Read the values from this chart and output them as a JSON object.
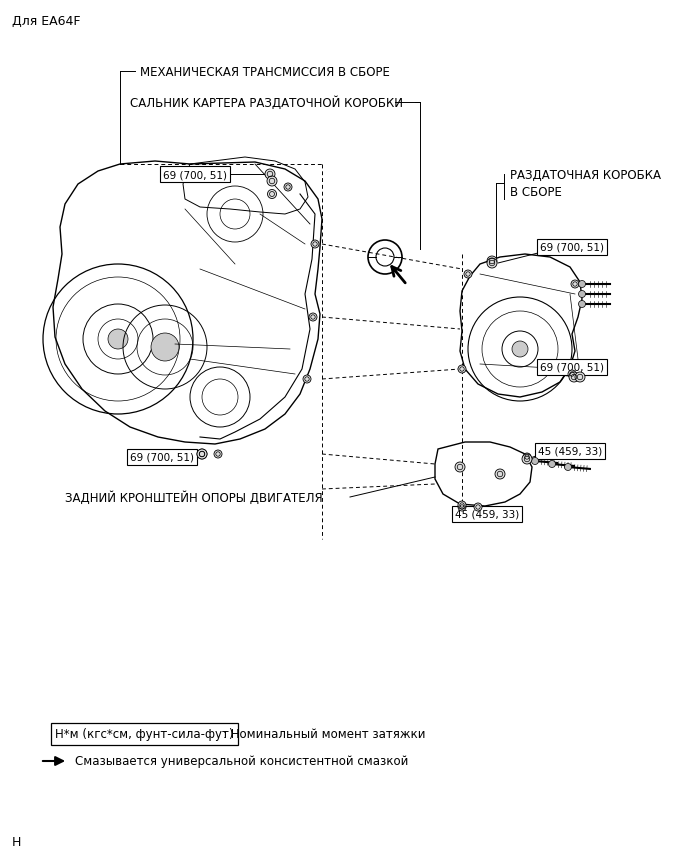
{
  "title_header": "Для EA64F",
  "bg_color": "#ffffff",
  "label_mech_trans": "МЕХАНИЧЕСКАЯ ТРАНСМИССИЯ В СБОРЕ",
  "label_seal": "САЛЬНИК КАРТЕРА РАЗДАТОЧНОЙ КОРОБКИ",
  "label_transfer_1": "РАЗДАТОЧНАЯ КОРОБКА",
  "label_transfer_2": "В СБОРЕ",
  "label_rear_bracket": "ЗАДНИЙ КРОНШТЕЙН ОПОРЫ ДВИГАТЕЛЯ",
  "torque_label_69": "69 (700, 51)",
  "torque_label_45": "45 (459, 33)",
  "legend_torque_box": "Н*м (кгс*см, фунт-сила-фут)",
  "legend_torque_text": ": Номинальный момент затяжки",
  "legend_grease_text": "Смазывается универсальной консистентной смазкой",
  "footer_letter": "Н",
  "fig_width": 6.91,
  "fig_height": 8.54,
  "dpi": 100
}
